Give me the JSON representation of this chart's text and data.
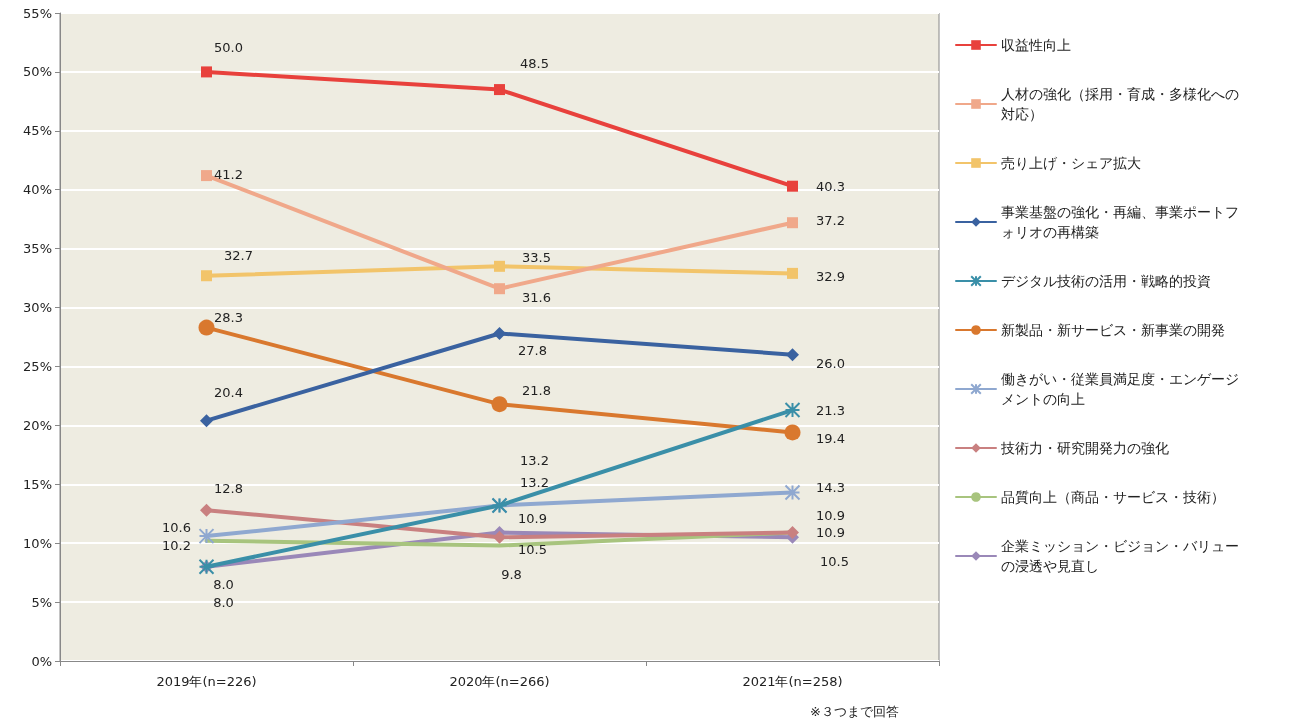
{
  "chart_data": {
    "type": "line",
    "categories": [
      "2019年(n=226)",
      "2020年(n=266)",
      "2021年(n=258)"
    ],
    "series": [
      {
        "name": "収益性向上",
        "color": "#e8413c",
        "marker": "square",
        "values": [
          50.0,
          48.5,
          40.3
        ],
        "value_labels": [
          "50.0",
          "48.5",
          "40.3"
        ]
      },
      {
        "name": "人材の強化（採用・育成・多様化への対応）",
        "color": "#f0a88a",
        "marker": "square",
        "values": [
          41.2,
          31.6,
          37.2
        ],
        "value_labels": [
          "41.2",
          "31.6",
          "37.2"
        ]
      },
      {
        "name": "売り上げ・シェア拡大",
        "color": "#f2c46a",
        "marker": "square",
        "values": [
          32.7,
          33.5,
          32.9
        ],
        "value_labels": [
          "32.7",
          "33.5",
          "32.9"
        ]
      },
      {
        "name": "事業基盤の強化・再編、事業ポートフォリオの再構築",
        "color": "#3a62a0",
        "marker": "diamond",
        "values": [
          20.4,
          27.8,
          26.0
        ],
        "value_labels": [
          "20.4",
          "27.8",
          "26.0"
        ]
      },
      {
        "name": "デジタル技術の活用・戦略的投資",
        "color": "#3a8fa8",
        "marker": "cross",
        "values": [
          8.0,
          13.2,
          21.3
        ],
        "value_labels": [
          "8.0",
          "13.2",
          "21.3"
        ]
      },
      {
        "name": "新製品・新サービス・新事業の開発",
        "color": "#d9782e",
        "marker": "circle",
        "values": [
          28.3,
          21.8,
          19.4
        ],
        "value_labels": [
          "28.3",
          "21.8",
          "19.4"
        ]
      },
      {
        "name": "働きがい・従業員満足度・エンゲージメントの向上",
        "color": "#8fa8d0",
        "marker": "cross",
        "values": [
          10.6,
          13.2,
          14.3
        ],
        "value_labels": [
          "10.6",
          "13.2",
          "14.3"
        ]
      },
      {
        "name": "技術力・研究開発力の強化",
        "color": "#c98080",
        "marker": "diamond",
        "values": [
          12.8,
          10.5,
          10.9
        ],
        "value_labels": [
          "12.8",
          "10.5",
          "10.9"
        ]
      },
      {
        "name": "品質向上（商品・サービス・技術）",
        "color": "#a8c47e",
        "marker": "none",
        "values": [
          10.2,
          9.8,
          10.9
        ],
        "value_labels": [
          "10.2",
          "9.8",
          "10.9"
        ]
      },
      {
        "name": "企業ミッション・ビジョン・バリューの浸透や見直し",
        "color": "#9a88b8",
        "marker": "diamond",
        "values": [
          8.0,
          10.9,
          10.5
        ],
        "value_labels": [
          "8.0",
          "10.9",
          "10.5"
        ]
      }
    ],
    "ylim": [
      0,
      55
    ],
    "yticks": [
      {
        "value": 0,
        "label": "0%"
      },
      {
        "value": 5,
        "label": "5%"
      },
      {
        "value": 10,
        "label": "10%"
      },
      {
        "value": 15,
        "label": "15%"
      },
      {
        "value": 20,
        "label": "20%"
      },
      {
        "value": 25,
        "label": "25%"
      },
      {
        "value": 30,
        "label": "30%"
      },
      {
        "value": 35,
        "label": "35%"
      },
      {
        "value": 40,
        "label": "40%"
      },
      {
        "value": 45,
        "label": "45%"
      },
      {
        "value": 50,
        "label": "50%"
      },
      {
        "value": 55,
        "label": "55%"
      }
    ],
    "grid": "y",
    "legend": "right",
    "annotations": [
      "※３つまで回答"
    ]
  }
}
